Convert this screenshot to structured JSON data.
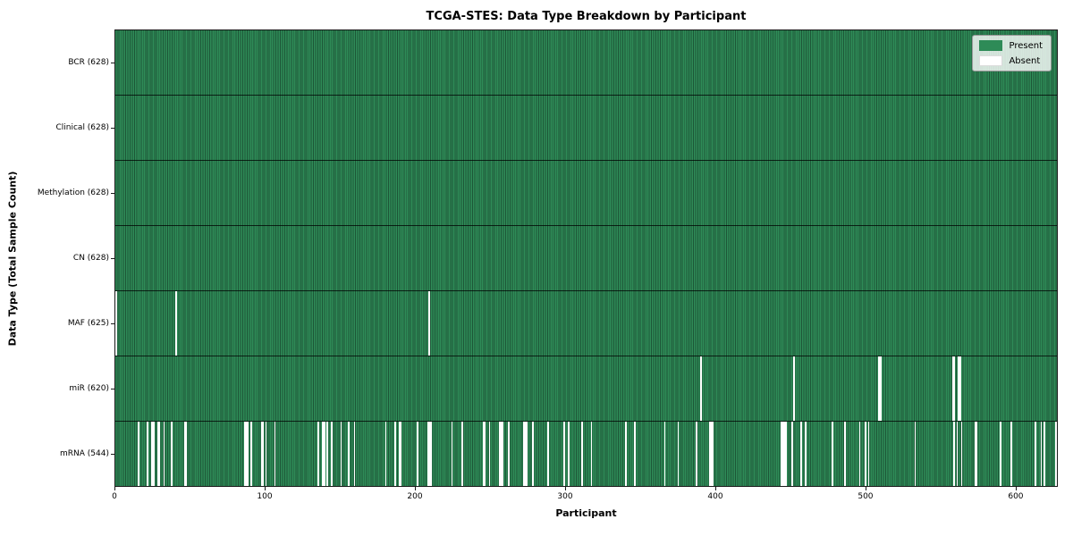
{
  "title": "TCGA-STES: Data Type Breakdown by Participant",
  "x_axis_label": "Participant",
  "y_axis_label": "Data Type (Total Sample Count)",
  "legend": {
    "present_label": "Present",
    "absent_label": "Absent"
  },
  "colors": {
    "present": "#2e8b57",
    "present_edge": "#1d5637",
    "absent": "#ffffff",
    "row_separator": "#000000",
    "legend_background": "#e8ede8",
    "legend_border": "#999999"
  },
  "chart_data": {
    "type": "heatmap",
    "title": "TCGA-STES: Data Type Breakdown by Participant",
    "xlabel": "Participant",
    "ylabel": "Data Type (Total Sample Count)",
    "legend_entries": [
      "Present",
      "Absent"
    ],
    "legend_position": "upper right",
    "grid": false,
    "n_participants": 628,
    "xlim": [
      0,
      628
    ],
    "x_ticks": [
      0,
      100,
      200,
      300,
      400,
      500,
      600
    ],
    "rows": [
      {
        "label": "BCR (628)",
        "data_type": "BCR",
        "total_sample_count": 628,
        "absent_participants": []
      },
      {
        "label": "Clinical (628)",
        "data_type": "Clinical",
        "total_sample_count": 628,
        "absent_participants": []
      },
      {
        "label": "Methylation (628)",
        "data_type": "Methylation",
        "total_sample_count": 628,
        "absent_participants": []
      },
      {
        "label": "CN (628)",
        "data_type": "CN",
        "total_sample_count": 628,
        "absent_participants": []
      },
      {
        "label": "MAF (625)",
        "data_type": "MAF",
        "total_sample_count": 625,
        "absent_participants": [
          0,
          40,
          209
        ]
      },
      {
        "label": "miR (620)",
        "data_type": "miR",
        "total_sample_count": 620,
        "absent_participants": [
          390,
          452,
          509,
          510,
          558,
          559,
          562,
          563
        ]
      },
      {
        "label": "mRNA (544)",
        "data_type": "mRNA",
        "total_sample_count": 544,
        "absent_participants": [
          15,
          21,
          24,
          25,
          28,
          29,
          32,
          37,
          46,
          47,
          86,
          87,
          88,
          90,
          97,
          98,
          100,
          106,
          135,
          138,
          139,
          141,
          144,
          150,
          155,
          159,
          180,
          186,
          189,
          190,
          201,
          208,
          209,
          210,
          224,
          231,
          245,
          246,
          249,
          256,
          257,
          258,
          262,
          272,
          273,
          274,
          278,
          288,
          299,
          302,
          311,
          317,
          340,
          346,
          366,
          375,
          387,
          396,
          397,
          398,
          444,
          445,
          446,
          447,
          451,
          457,
          460,
          478,
          486,
          496,
          500,
          502,
          533,
          559,
          561,
          564,
          573,
          574,
          590,
          597,
          613,
          617,
          619,
          627
        ]
      }
    ]
  }
}
